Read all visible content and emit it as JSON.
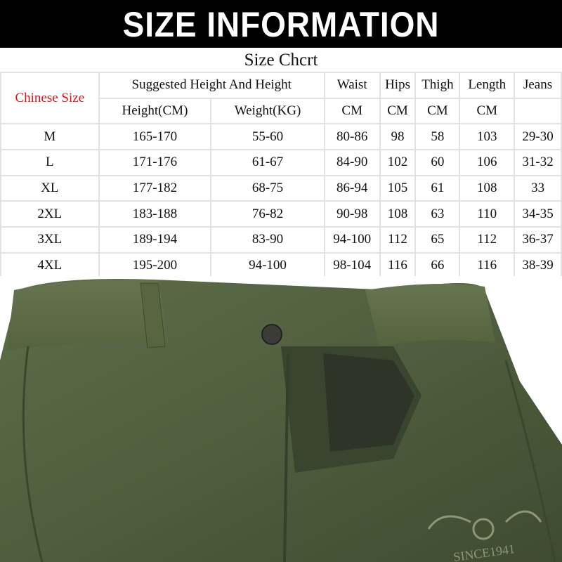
{
  "banner": {
    "title": "SIZE INFORMATION"
  },
  "chart": {
    "title": "Size Chcrt",
    "size_header": "Chinese Size",
    "group_header": "Suggested Height And Height",
    "columns": [
      "Waist",
      "Hips",
      "Thigh",
      "Length",
      "Jeans"
    ],
    "sub_headers": [
      "Height(CM)",
      "Weight(KG)",
      "CM",
      "CM",
      "CM",
      "CM",
      ""
    ],
    "rows": [
      [
        "M",
        "165-170",
        "55-60",
        "80-86",
        "98",
        "58",
        "103",
        "29-30"
      ],
      [
        "L",
        "171-176",
        "61-67",
        "84-90",
        "102",
        "60",
        "106",
        "31-32"
      ],
      [
        "XL",
        "177-182",
        "68-75",
        "86-94",
        "105",
        "61",
        "108",
        "33"
      ],
      [
        "2XL",
        "183-188",
        "76-82",
        "90-98",
        "108",
        "63",
        "110",
        "34-35"
      ],
      [
        "3XL",
        "189-194",
        "83-90",
        "94-100",
        "112",
        "65",
        "112",
        "36-37"
      ],
      [
        "4XL",
        "195-200",
        "94-100",
        "98-104",
        "116",
        "66",
        "116",
        "38-39"
      ]
    ]
  },
  "photo": {
    "embroidery": "SINCE1941",
    "fabric_color": "#4f5e3e"
  },
  "colors": {
    "accent": "#d9141b",
    "banner_bg": "#000000"
  }
}
